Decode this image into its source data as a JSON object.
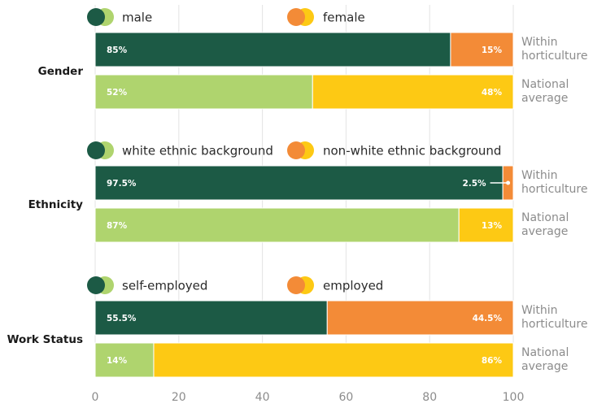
{
  "colors": {
    "primary_hort": "#1c5a45",
    "secondary_hort": "#f38b37",
    "primary_nat": "#afd46e",
    "secondary_nat": "#fdc914"
  },
  "chart_data": {
    "type": "bar",
    "orientation": "horizontal",
    "stacked": true,
    "xlim": [
      0,
      100
    ],
    "x_ticks": [
      "0",
      "20",
      "40",
      "60",
      "80",
      "100"
    ],
    "grid": true,
    "groups": [
      {
        "label": "Gender",
        "legend": [
          "male",
          "female"
        ],
        "rows": [
          {
            "label": "Within horticulture",
            "label_lines": [
              "Within",
              "horticulture"
            ],
            "values": [
              85,
              15
            ],
            "value_labels": [
              "85%",
              "15%"
            ]
          },
          {
            "label": "National average",
            "label_lines": [
              "National",
              "average"
            ],
            "values": [
              52,
              48
            ],
            "value_labels": [
              "52%",
              "48%"
            ]
          }
        ]
      },
      {
        "label": "Ethnicity",
        "legend": [
          "white ethnic background",
          "non-white ethnic background"
        ],
        "rows": [
          {
            "label": "Within horticulture",
            "label_lines": [
              "Within",
              "horticulture"
            ],
            "values": [
              97.5,
              2.5
            ],
            "value_labels": [
              "97.5%",
              "2.5%"
            ]
          },
          {
            "label": "National average",
            "label_lines": [
              "National",
              "average"
            ],
            "values": [
              87,
              13
            ],
            "value_labels": [
              "87%",
              "13%"
            ]
          }
        ]
      },
      {
        "label": "Work Status",
        "legend": [
          "self-employed",
          "employed"
        ],
        "rows": [
          {
            "label": "Within horticulture",
            "label_lines": [
              "Within",
              "horticulture"
            ],
            "values": [
              55.5,
              44.5
            ],
            "value_labels": [
              "55.5%",
              "44.5%"
            ]
          },
          {
            "label": "National average",
            "label_lines": [
              "National",
              "average"
            ],
            "values": [
              14,
              86
            ],
            "value_labels": [
              "14%",
              "86%"
            ]
          }
        ]
      }
    ]
  }
}
